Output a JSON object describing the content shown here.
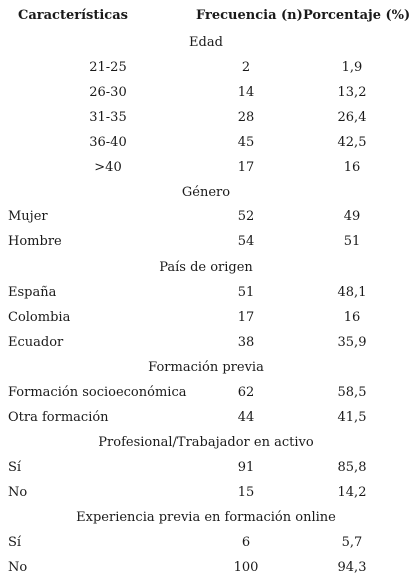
{
  "headers": {
    "characteristics": "Características",
    "frequency": "Frecuencia (n)",
    "percentage": "Porcentaje (%)"
  },
  "sections": [
    {
      "title": "Edad",
      "rows": [
        {
          "label": "21-25",
          "n": "2",
          "pct": "1,9"
        },
        {
          "label": "26-30",
          "n": "14",
          "pct": "13,2"
        },
        {
          "label": "31-35",
          "n": "28",
          "pct": "26,4"
        },
        {
          "label": "36-40",
          "n": "45",
          "pct": "42,5"
        },
        {
          "label": ">40",
          "n": "17",
          "pct": "16"
        }
      ]
    },
    {
      "title": "Género",
      "rows": [
        {
          "label": "Mujer",
          "n": "52",
          "pct": "49"
        },
        {
          "label": "Hombre",
          "n": "54",
          "pct": "51"
        }
      ]
    },
    {
      "title": "País de origen",
      "rows": [
        {
          "label": "España",
          "n": "51",
          "pct": "48,1"
        },
        {
          "label": "Colombia",
          "n": "17",
          "pct": "16"
        },
        {
          "label": "Ecuador",
          "n": "38",
          "pct": "35,9"
        }
      ]
    },
    {
      "title": "Formación previa",
      "rows": [
        {
          "label": "Formación socioeconómica",
          "n": "62",
          "pct": "58,5"
        },
        {
          "label": "Otra formación",
          "n": "44",
          "pct": "41,5"
        }
      ]
    },
    {
      "title": "Profesional/Trabajador en activo",
      "rows": [
        {
          "label": "Sí",
          "n": "91",
          "pct": "85,8"
        },
        {
          "label": "No",
          "n": "15",
          "pct": "14,2"
        }
      ]
    },
    {
      "title": "Experiencia previa en formación online",
      "rows": [
        {
          "label": "Sí",
          "n": "6",
          "pct": "5,7"
        },
        {
          "label": "No",
          "n": "100",
          "pct": "94,3"
        }
      ]
    }
  ]
}
